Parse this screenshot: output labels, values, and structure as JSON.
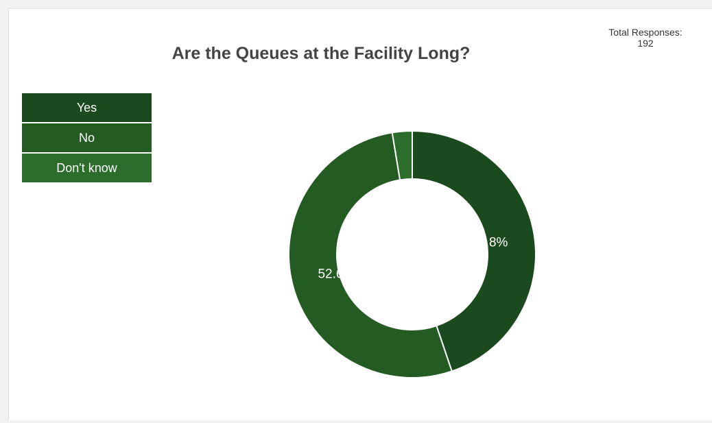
{
  "chart_data": {
    "type": "pie",
    "donut": true,
    "title": "Are the Queues at the Facility Long?",
    "total_label": "Total Responses:",
    "total_value": "192",
    "categories": [
      "Yes",
      "No",
      "Don't know"
    ],
    "values": [
      44.8,
      52.6,
      2.6
    ],
    "data_labels": [
      "44.8%",
      "52.6%",
      ""
    ],
    "colors": [
      "#1c4a1f",
      "#245b23",
      "#2d6d2b"
    ],
    "legend_position": "top-left"
  }
}
